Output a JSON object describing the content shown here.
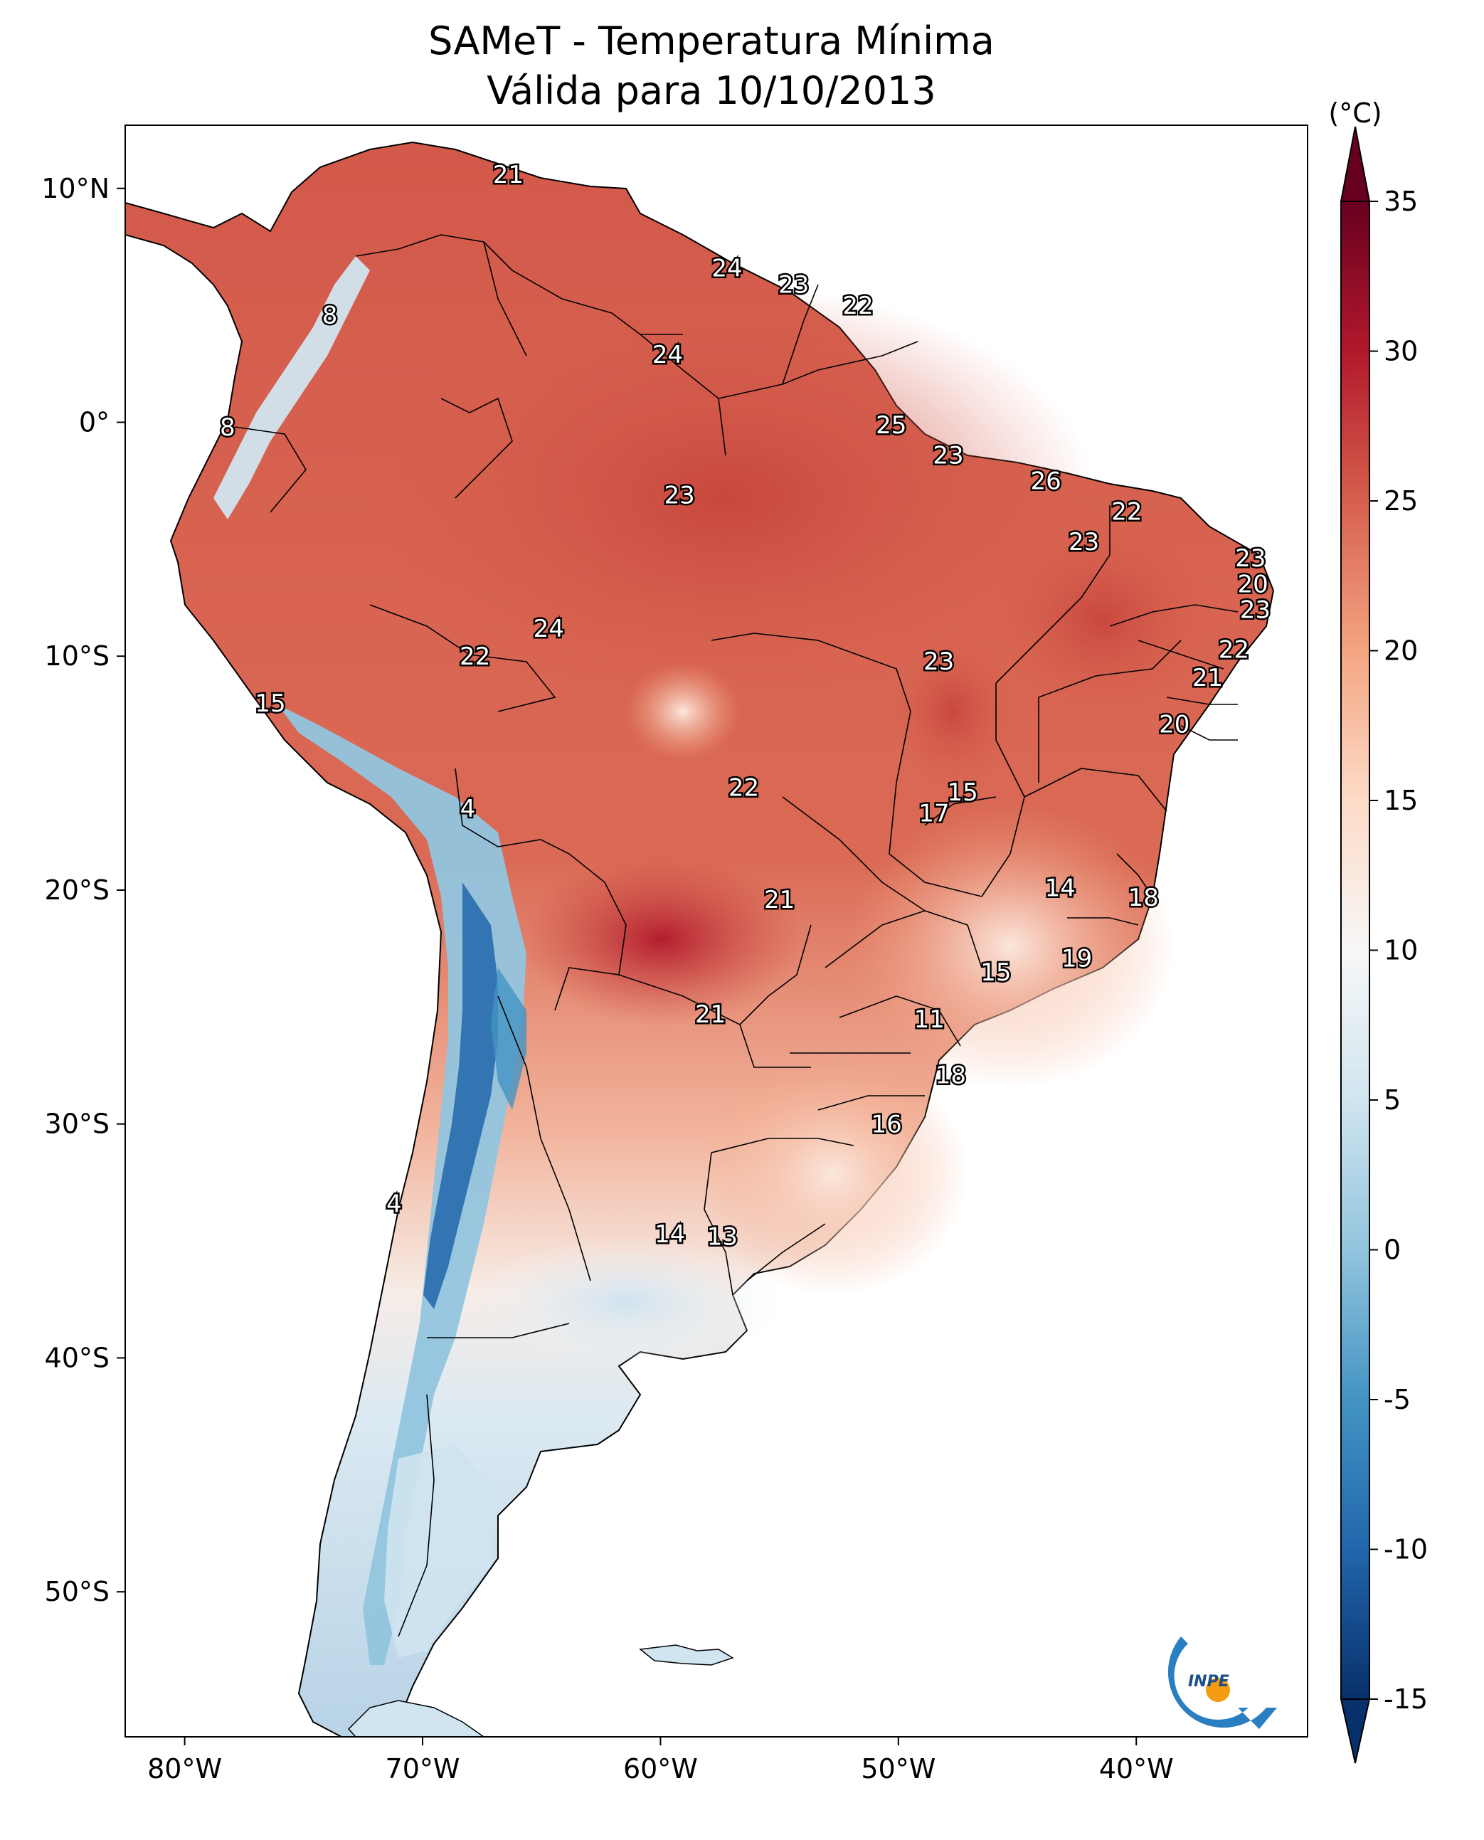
{
  "title_line1": "SAMeT - Temperatura Mínima",
  "title_line2": "Válida para 10/10/2013",
  "colorbar": {
    "unit_label": "(°C)",
    "min": -15,
    "max": 35,
    "ticks": [
      "35",
      "30",
      "25",
      "20",
      "15",
      "10",
      "5",
      "0",
      "-5",
      "-10",
      "-15"
    ],
    "tick_values": [
      35,
      30,
      25,
      20,
      15,
      10,
      5,
      0,
      -5,
      -10,
      -15
    ],
    "colors": [
      "#08306b",
      "#2166ac",
      "#4393c3",
      "#92c5de",
      "#d1e5f0",
      "#f7f7f7",
      "#fddbc7",
      "#f4a582",
      "#d6604d",
      "#b2182b",
      "#67001f"
    ]
  },
  "axes": {
    "lon_labels": [
      "80°W",
      "70°W",
      "60°W",
      "50°W",
      "40°W"
    ],
    "lon_values": [
      -80,
      -70,
      -60,
      -50,
      -40
    ],
    "lat_labels": [
      "10°N",
      "0°",
      "10°S",
      "20°S",
      "30°S",
      "40°S",
      "50°S"
    ],
    "lat_values": [
      10,
      0,
      -10,
      -20,
      -30,
      -40,
      -50
    ],
    "lon_range": [
      -82.5,
      -32.8
    ],
    "lat_range": [
      12.7,
      -56.2
    ]
  },
  "station_values": [
    {
      "text": "21",
      "lon": -66.4,
      "lat": 10.6
    },
    {
      "text": "24",
      "lon": -57.2,
      "lat": 6.6
    },
    {
      "text": "23",
      "lon": -54.4,
      "lat": 5.9
    },
    {
      "text": "22",
      "lon": -51.7,
      "lat": 5.0
    },
    {
      "text": "8",
      "lon": -73.9,
      "lat": 4.6
    },
    {
      "text": "24",
      "lon": -59.7,
      "lat": 2.9
    },
    {
      "text": "8",
      "lon": -78.2,
      "lat": -0.2
    },
    {
      "text": "25",
      "lon": -50.3,
      "lat": -0.1
    },
    {
      "text": "23",
      "lon": -47.9,
      "lat": -1.4
    },
    {
      "text": "26",
      "lon": -43.8,
      "lat": -2.5
    },
    {
      "text": "23",
      "lon": -59.2,
      "lat": -3.1
    },
    {
      "text": "22",
      "lon": -40.4,
      "lat": -3.8
    },
    {
      "text": "23",
      "lon": -42.2,
      "lat": -5.1
    },
    {
      "text": "23",
      "lon": -35.2,
      "lat": -5.8
    },
    {
      "text": "20",
      "lon": -35.1,
      "lat": -6.9
    },
    {
      "text": "23",
      "lon": -35.0,
      "lat": -8.0
    },
    {
      "text": "24",
      "lon": -64.7,
      "lat": -8.8
    },
    {
      "text": "22",
      "lon": -35.9,
      "lat": -9.7
    },
    {
      "text": "22",
      "lon": -67.8,
      "lat": -10.0
    },
    {
      "text": "23",
      "lon": -48.3,
      "lat": -10.2
    },
    {
      "text": "21",
      "lon": -37.0,
      "lat": -10.9
    },
    {
      "text": "15",
      "lon": -76.4,
      "lat": -12.0
    },
    {
      "text": "20",
      "lon": -38.4,
      "lat": -12.9
    },
    {
      "text": "22",
      "lon": -56.5,
      "lat": -15.6
    },
    {
      "text": "15",
      "lon": -47.3,
      "lat": -15.8
    },
    {
      "text": "4",
      "lon": -68.1,
      "lat": -16.5
    },
    {
      "text": "17",
      "lon": -48.5,
      "lat": -16.7
    },
    {
      "text": "14",
      "lon": -43.2,
      "lat": -19.9
    },
    {
      "text": "18",
      "lon": -39.7,
      "lat": -20.3
    },
    {
      "text": "21",
      "lon": -55.0,
      "lat": -20.4
    },
    {
      "text": "19",
      "lon": -42.5,
      "lat": -22.9
    },
    {
      "text": "15",
      "lon": -45.9,
      "lat": -23.5
    },
    {
      "text": "21",
      "lon": -57.9,
      "lat": -25.3
    },
    {
      "text": "11",
      "lon": -48.7,
      "lat": -25.5
    },
    {
      "text": "18",
      "lon": -47.8,
      "lat": -27.9
    },
    {
      "text": "16",
      "lon": -50.5,
      "lat": -30.0
    },
    {
      "text": "4",
      "lon": -71.2,
      "lat": -33.4
    },
    {
      "text": "14",
      "lon": -59.6,
      "lat": -34.7
    },
    {
      "text": "13",
      "lon": -57.4,
      "lat": -34.8
    }
  ],
  "logo_text": "INPE"
}
